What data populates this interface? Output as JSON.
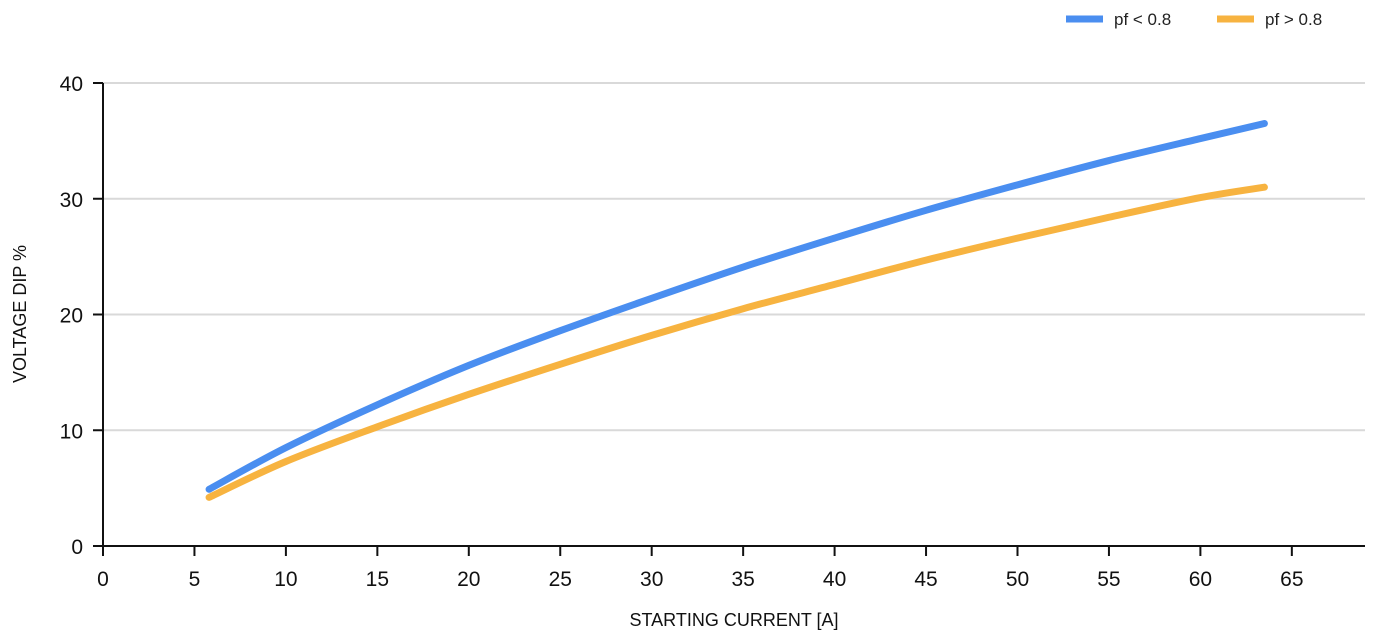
{
  "chart_data": {
    "type": "line",
    "xlabel": "STARTING CURRENT [A]",
    "ylabel": "VOLTAGE DIP %",
    "xlim": [
      0,
      69
    ],
    "ylim": [
      0,
      40
    ],
    "x_ticks": [
      0,
      5,
      10,
      15,
      20,
      25,
      30,
      35,
      40,
      45,
      50,
      55,
      60,
      65
    ],
    "y_ticks": [
      0,
      10,
      20,
      30,
      40
    ],
    "grid": "horizontal",
    "legend_position": "top-right",
    "series": [
      {
        "name": "pf < 0.8",
        "color": "#4a8ef0",
        "points": [
          [
            5.8,
            4.9
          ],
          [
            10,
            8.5
          ],
          [
            15,
            12.2
          ],
          [
            20,
            15.6
          ],
          [
            25,
            18.6
          ],
          [
            30,
            21.4
          ],
          [
            35,
            24.1
          ],
          [
            40,
            26.6
          ],
          [
            45,
            29.0
          ],
          [
            50,
            31.2
          ],
          [
            55,
            33.3
          ],
          [
            60,
            35.2
          ],
          [
            63.5,
            36.5
          ]
        ]
      },
      {
        "name": "pf > 0.8",
        "color": "#f7b340",
        "points": [
          [
            5.8,
            4.2
          ],
          [
            10,
            7.3
          ],
          [
            15,
            10.3
          ],
          [
            20,
            13.1
          ],
          [
            25,
            15.7
          ],
          [
            30,
            18.2
          ],
          [
            35,
            20.5
          ],
          [
            40,
            22.6
          ],
          [
            45,
            24.7
          ],
          [
            50,
            26.6
          ],
          [
            55,
            28.4
          ],
          [
            60,
            30.1
          ],
          [
            63.5,
            31.0
          ]
        ]
      }
    ]
  }
}
